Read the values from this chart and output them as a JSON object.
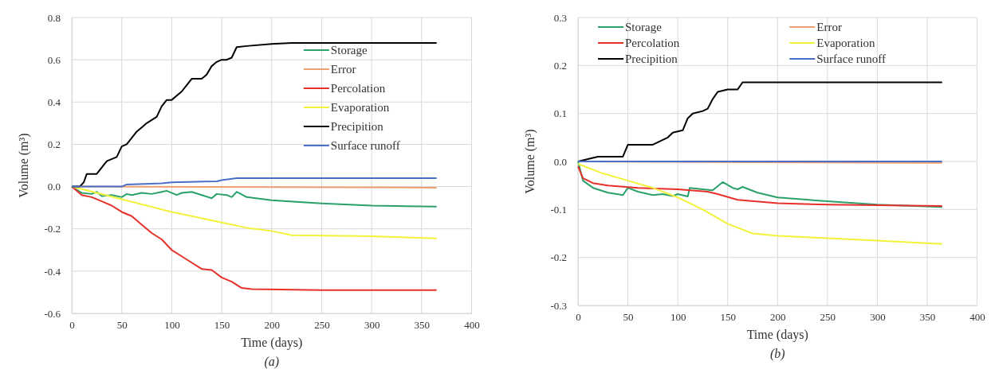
{
  "chart_data": [
    {
      "type": "line",
      "xlabel": "Time (days)",
      "ylabel": "Volume (m³)",
      "annotations": [
        "(a)"
      ],
      "xlim": [
        0,
        400
      ],
      "xticks": [
        0,
        50,
        100,
        150,
        200,
        250,
        300,
        350,
        400
      ],
      "ylim": [
        -0.6,
        0.8
      ],
      "yticks": [
        {
          "value": -0.6,
          "label": "-0.6"
        },
        {
          "value": -0.4,
          "label": "-0.4"
        },
        {
          "value": -0.2,
          "label": "-0.2"
        },
        {
          "value": 0,
          "label": "0.0"
        },
        {
          "value": 0.2,
          "label": "0.2"
        },
        {
          "value": 0.4,
          "label": "0.4"
        },
        {
          "value": 0.6,
          "label": "0.6"
        },
        {
          "value": 0.8,
          "label": "0.8"
        }
      ],
      "grid": true,
      "legend": "right",
      "marker": "none",
      "line_style": "solid",
      "series": [
        {
          "name": "Storage",
          "color": "#2aa06a",
          "x": [
            0,
            10,
            20,
            25,
            30,
            40,
            50,
            55,
            60,
            70,
            80,
            90,
            95,
            105,
            110,
            120,
            130,
            140,
            145,
            155,
            160,
            165,
            175,
            200,
            250,
            300,
            365
          ],
          "values": [
            0,
            -0.03,
            -0.035,
            -0.025,
            -0.045,
            -0.04,
            -0.05,
            -0.035,
            -0.04,
            -0.03,
            -0.035,
            -0.025,
            -0.02,
            -0.04,
            -0.03,
            -0.025,
            -0.04,
            -0.055,
            -0.035,
            -0.04,
            -0.05,
            -0.025,
            -0.05,
            -0.065,
            -0.08,
            -0.09,
            -0.095
          ]
        },
        {
          "name": "Error",
          "color": "#f0a070",
          "x": [
            0,
            365
          ],
          "values": [
            0,
            -0.005
          ]
        },
        {
          "name": "Percolation",
          "color": "#e8302a",
          "x": [
            0,
            10,
            20,
            30,
            40,
            50,
            60,
            70,
            80,
            90,
            100,
            110,
            120,
            130,
            140,
            150,
            160,
            170,
            180,
            250,
            365
          ],
          "values": [
            0,
            -0.04,
            -0.05,
            -0.07,
            -0.09,
            -0.12,
            -0.14,
            -0.18,
            -0.22,
            -0.25,
            -0.3,
            -0.33,
            -0.36,
            -0.39,
            -0.395,
            -0.43,
            -0.45,
            -0.48,
            -0.485,
            -0.49,
            -0.49
          ]
        },
        {
          "name": "Evaporation",
          "color": "#f2f23a",
          "x": [
            0,
            25,
            50,
            100,
            150,
            175,
            200,
            220,
            300,
            365
          ],
          "values": [
            0,
            -0.03,
            -0.06,
            -0.12,
            -0.17,
            -0.195,
            -0.21,
            -0.23,
            -0.235,
            -0.245
          ]
        },
        {
          "name": "Precipition",
          "color": "#000000",
          "x": [
            0,
            8,
            12,
            15,
            25,
            30,
            35,
            45,
            50,
            55,
            60,
            65,
            70,
            75,
            85,
            90,
            95,
            100,
            110,
            115,
            120,
            130,
            135,
            140,
            145,
            150,
            155,
            160,
            165,
            175,
            200,
            220,
            365
          ],
          "values": [
            0,
            0,
            0.02,
            0.06,
            0.06,
            0.09,
            0.12,
            0.14,
            0.19,
            0.2,
            0.23,
            0.26,
            0.28,
            0.3,
            0.33,
            0.38,
            0.41,
            0.41,
            0.45,
            0.48,
            0.51,
            0.51,
            0.53,
            0.57,
            0.59,
            0.6,
            0.6,
            0.61,
            0.66,
            0.665,
            0.675,
            0.68,
            0.68
          ]
        },
        {
          "name": "Surface runoff",
          "color": "#4a6fc8",
          "x": [
            0,
            50,
            55,
            90,
            100,
            145,
            150,
            165,
            365
          ],
          "values": [
            0,
            0,
            0.01,
            0.015,
            0.02,
            0.025,
            0.03,
            0.04,
            0.04
          ]
        }
      ]
    },
    {
      "type": "line",
      "xlabel": "Time (days)",
      "ylabel": "Volume (m³)",
      "annotations": [
        "(b)"
      ],
      "xlim": [
        0,
        400
      ],
      "xticks": [
        0,
        50,
        100,
        150,
        200,
        250,
        300,
        350,
        400
      ],
      "ylim": [
        -0.3,
        0.3
      ],
      "yticks": [
        {
          "value": -0.3,
          "label": "-0.3"
        },
        {
          "value": -0.2,
          "label": "-0.2"
        },
        {
          "value": -0.1,
          "label": "-0.1"
        },
        {
          "value": 0,
          "label": "0.0"
        },
        {
          "value": 0.1,
          "label": "0.1"
        },
        {
          "value": 0.2,
          "label": "0.2"
        },
        {
          "value": 0.3,
          "label": "0.3"
        }
      ],
      "grid": true,
      "legend": "top",
      "marker": "none",
      "line_style": "solid",
      "series": [
        {
          "name": "Storage",
          "color": "#2aa06a",
          "x": [
            0,
            5,
            15,
            30,
            45,
            50,
            60,
            75,
            85,
            95,
            100,
            110,
            112,
            125,
            135,
            145,
            155,
            160,
            165,
            180,
            200,
            250,
            300,
            365
          ],
          "values": [
            0,
            -0.04,
            -0.055,
            -0.065,
            -0.07,
            -0.055,
            -0.063,
            -0.07,
            -0.068,
            -0.072,
            -0.068,
            -0.073,
            -0.055,
            -0.058,
            -0.06,
            -0.043,
            -0.055,
            -0.058,
            -0.053,
            -0.065,
            -0.075,
            -0.083,
            -0.09,
            -0.095
          ]
        },
        {
          "name": "Error",
          "color": "#f0a070",
          "x": [
            0,
            365
          ],
          "values": [
            0,
            -0.003
          ]
        },
        {
          "name": "Percolation",
          "color": "#e8302a",
          "x": [
            0,
            5,
            15,
            30,
            60,
            100,
            130,
            140,
            160,
            200,
            250,
            365
          ],
          "values": [
            -0.01,
            -0.035,
            -0.045,
            -0.05,
            -0.055,
            -0.058,
            -0.063,
            -0.068,
            -0.08,
            -0.087,
            -0.09,
            -0.093
          ]
        },
        {
          "name": "Evaporation",
          "color": "#f2f23a",
          "x": [
            0,
            25,
            50,
            75,
            100,
            125,
            150,
            175,
            200,
            250,
            300,
            365
          ],
          "values": [
            -0.005,
            -0.025,
            -0.04,
            -0.055,
            -0.075,
            -0.1,
            -0.13,
            -0.15,
            -0.155,
            -0.16,
            -0.165,
            -0.172
          ]
        },
        {
          "name": "Precipition",
          "color": "#000000",
          "x": [
            0,
            10,
            20,
            45,
            50,
            75,
            80,
            90,
            95,
            105,
            110,
            115,
            125,
            130,
            135,
            140,
            150,
            160,
            165,
            365
          ],
          "values": [
            0,
            0.005,
            0.01,
            0.01,
            0.035,
            0.035,
            0.04,
            0.05,
            0.06,
            0.065,
            0.09,
            0.1,
            0.105,
            0.11,
            0.13,
            0.145,
            0.15,
            0.15,
            0.165,
            0.165
          ]
        },
        {
          "name": "Surface runoff",
          "color": "#4a6fc8",
          "x": [
            0,
            365
          ],
          "values": [
            0,
            0
          ]
        }
      ]
    }
  ]
}
